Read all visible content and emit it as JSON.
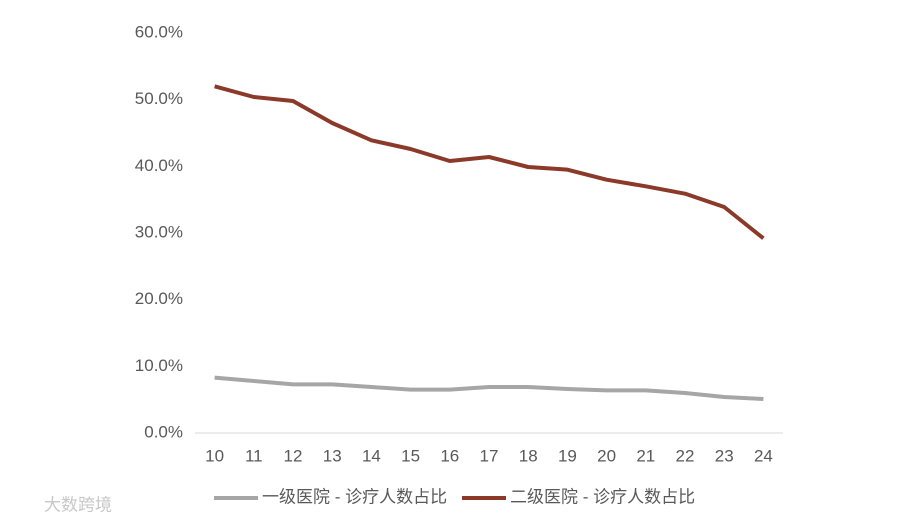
{
  "chart_data": {
    "type": "line",
    "categories": [
      "10",
      "11",
      "12",
      "13",
      "14",
      "15",
      "16",
      "17",
      "18",
      "19",
      "20",
      "21",
      "22",
      "23",
      "24"
    ],
    "series": [
      {
        "name": "一级医院 - 诊疗人数占比",
        "color": "#a6a6a6",
        "values": [
          8.3,
          7.8,
          7.3,
          7.3,
          6.9,
          6.5,
          6.5,
          6.9,
          6.9,
          6.6,
          6.4,
          6.4,
          6.0,
          5.4,
          5.1
        ]
      },
      {
        "name": "二级医院 - 诊疗人数占比",
        "color": "#8b3a2a",
        "values": [
          52.0,
          50.4,
          49.8,
          46.5,
          43.9,
          42.6,
          40.8,
          41.4,
          39.9,
          39.5,
          38.0,
          37.0,
          35.9,
          33.9,
          29.2
        ]
      }
    ],
    "ylim": [
      0,
      60
    ],
    "yticks": [
      {
        "value": 0,
        "label": "0.0%"
      },
      {
        "value": 10,
        "label": "10.0%"
      },
      {
        "value": 20,
        "label": "20.0%"
      },
      {
        "value": 30,
        "label": "30.0%"
      },
      {
        "value": 40,
        "label": "40.0%"
      },
      {
        "value": 50,
        "label": "50.0%"
      },
      {
        "value": 60,
        "label": "60.0%"
      }
    ],
    "grid": false,
    "legend": "bottom"
  },
  "watermark": "大数跨境"
}
